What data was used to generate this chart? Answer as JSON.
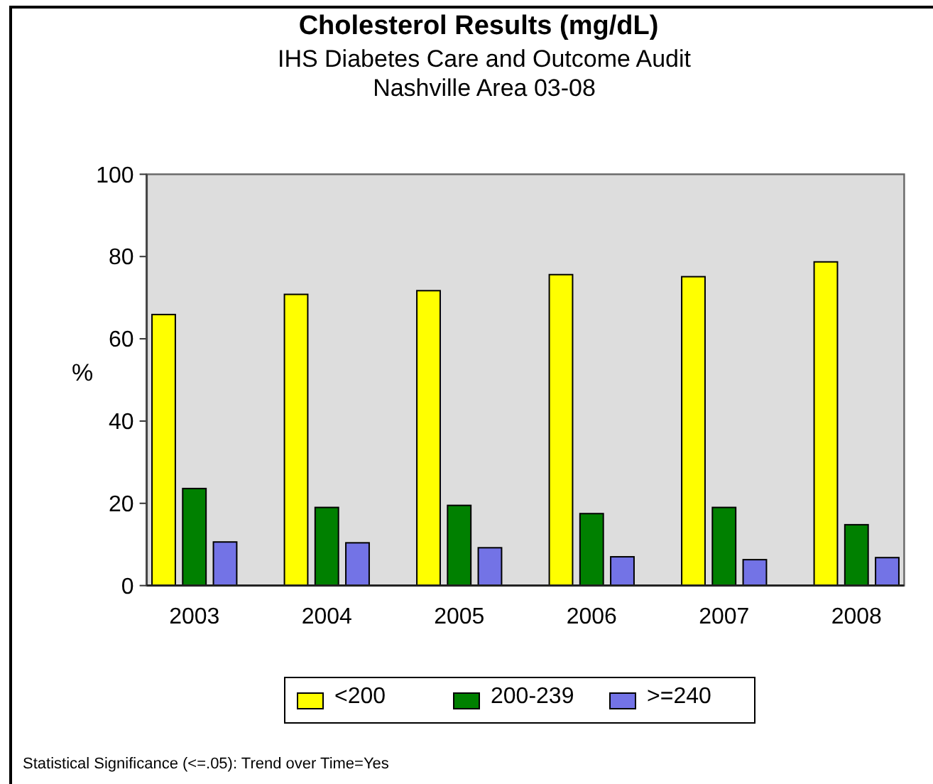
{
  "chart_data": {
    "type": "bar",
    "title": "Cholesterol Results (mg/dL)",
    "subtitle": "IHS Diabetes Care and Outcome Audit\nNashville Area 03-08",
    "ylabel": "%",
    "categories": [
      "2003",
      "2004",
      "2005",
      "2006",
      "2007",
      "2008"
    ],
    "series": [
      {
        "name": "<200",
        "color": "#ffff00",
        "values": [
          65.9,
          70.8,
          71.7,
          75.6,
          75.1,
          78.7
        ]
      },
      {
        "name": "200-239",
        "color": "#008000",
        "values": [
          23.6,
          19.0,
          19.5,
          17.5,
          19.0,
          14.8
        ]
      },
      {
        "name": ">=240",
        "color": "#7373e6",
        "values": [
          10.6,
          10.4,
          9.2,
          7.0,
          6.3,
          6.8
        ]
      }
    ],
    "ylim": [
      0,
      100
    ],
    "yticks": [
      0,
      20,
      40,
      60,
      80,
      100
    ],
    "legend": "bottom",
    "annotations": [
      "Statistical Significance (<=.05): Trend over Time=Yes"
    ]
  }
}
